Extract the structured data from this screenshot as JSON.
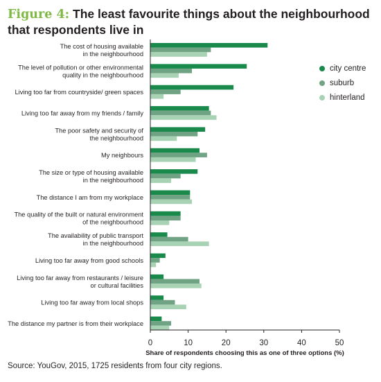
{
  "figure": {
    "label": "Figure 4:",
    "title": "The least favourite things about the neighbourhood that respondents live in"
  },
  "source": "Source: YouGov, 2015, 1725 residents from four city regions.",
  "chart_data": {
    "type": "bar",
    "orientation": "horizontal",
    "categories": [
      [
        "The cost of housing available",
        "in the neighbourhood"
      ],
      [
        "The level of pollution or other environmental",
        "quality in the neighbourhood"
      ],
      [
        "Living too far from countryside/ green spaces"
      ],
      [
        "Living too far away from my friends / family"
      ],
      [
        "The poor safety and security of",
        "the neighbourhood"
      ],
      [
        "My neighbours"
      ],
      [
        "The size or type of housing available",
        "in the neighbourhood"
      ],
      [
        "The distance I am from my workplace"
      ],
      [
        "The quality of the built or natural environment",
        "of the neighbourhood"
      ],
      [
        "The availability of public transport",
        "in the neighbourhood"
      ],
      [
        "Living too far away from good schools"
      ],
      [
        "Living too far away from restaurants / leisure",
        "or cultural facilities"
      ],
      [
        "Living too far away from local shops"
      ],
      [
        "The distance my partner is from their workplace"
      ]
    ],
    "series": [
      {
        "name": "city centre",
        "color": "#1a8a4c",
        "values": [
          31,
          25.5,
          22,
          15.5,
          14.5,
          13,
          12.5,
          10.5,
          8,
          4.5,
          4,
          3.5,
          3.5,
          3
        ]
      },
      {
        "name": "suburb",
        "color": "#6fa383",
        "values": [
          16,
          11,
          8,
          16,
          12.5,
          15,
          8,
          10.5,
          8,
          10,
          2.5,
          13,
          6.5,
          5.5
        ]
      },
      {
        "name": "hinterland",
        "color": "#a8d2b4",
        "values": [
          15,
          7.5,
          3.5,
          17.5,
          7,
          12,
          5.5,
          11,
          5,
          15.5,
          1.5,
          13.5,
          9.5,
          5
        ]
      }
    ],
    "xlabel": "Share of respondents choosing this as one of three options (%)",
    "xlim": [
      0,
      50
    ],
    "xticks": [
      0,
      10,
      20,
      30,
      40,
      50
    ],
    "legend_position": "top-right",
    "grid": false
  }
}
